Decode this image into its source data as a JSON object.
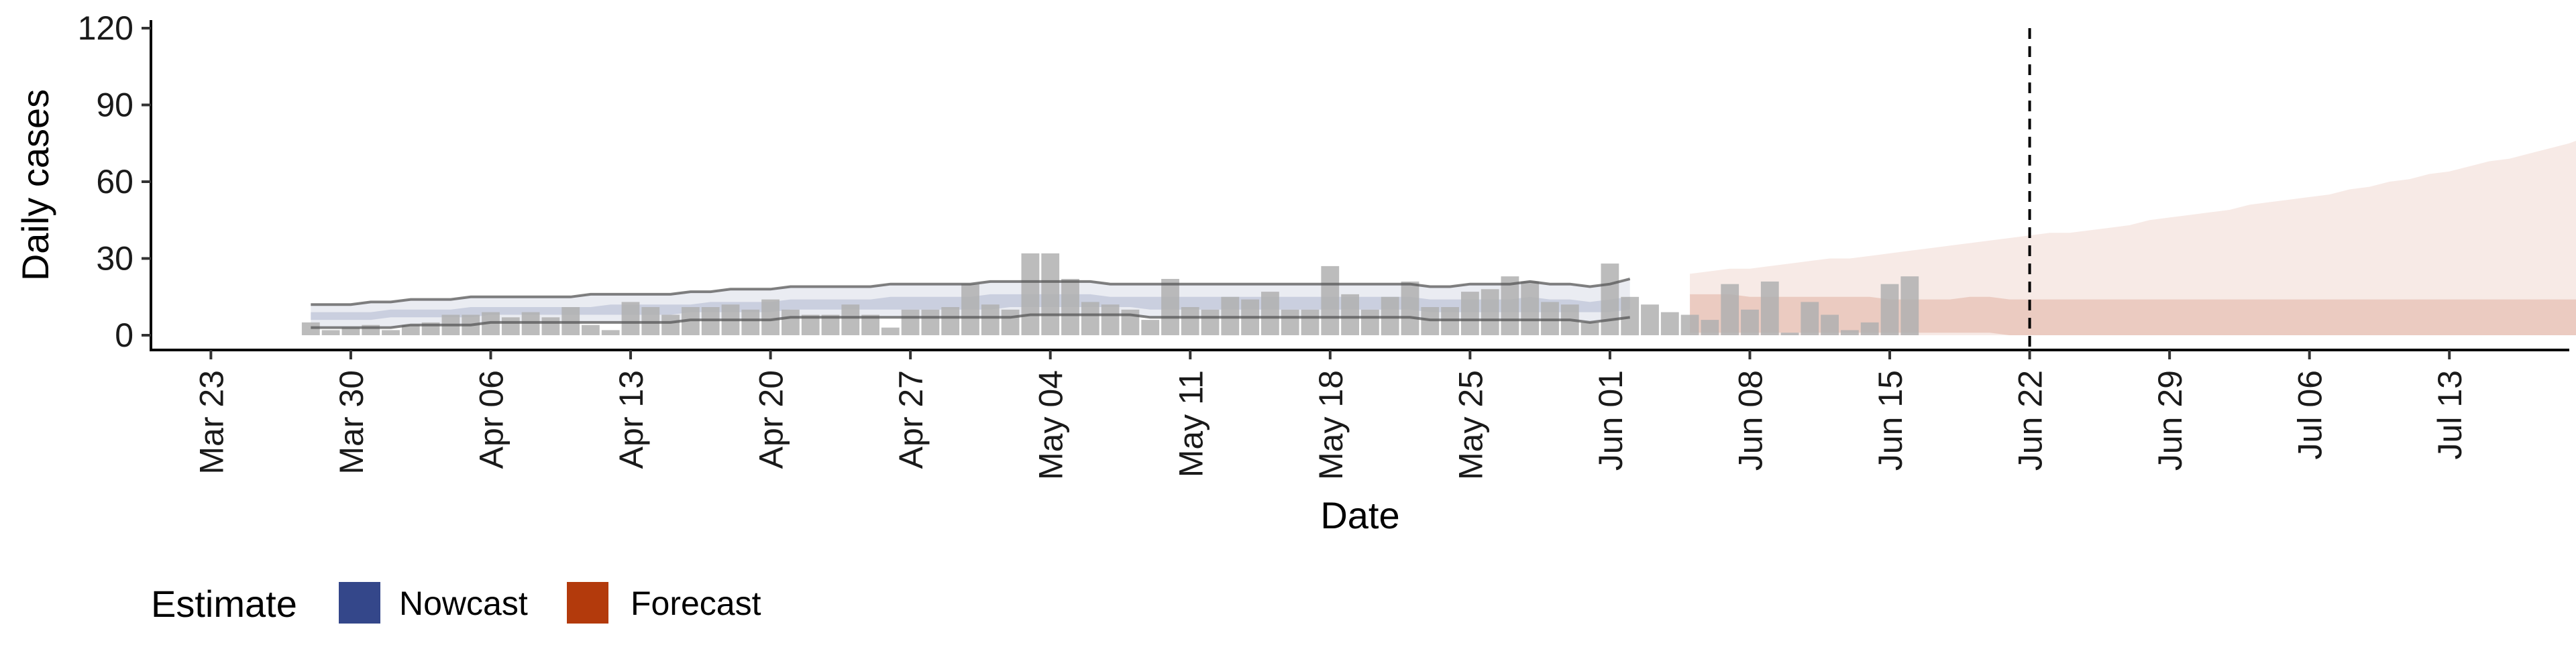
{
  "chart_data": {
    "type": "bar",
    "title": "",
    "xlabel": "Date",
    "ylabel": "Daily cases",
    "ylim": [
      0,
      120
    ],
    "y_ticks": [
      0,
      30,
      60,
      90,
      120
    ],
    "xlim": [
      "2020-03-20",
      "2020-07-19"
    ],
    "x_ticks": [
      {
        "date": "2020-03-23",
        "label": "Mar 23"
      },
      {
        "date": "2020-03-30",
        "label": "Mar 30"
      },
      {
        "date": "2020-04-06",
        "label": "Apr 06"
      },
      {
        "date": "2020-04-13",
        "label": "Apr 13"
      },
      {
        "date": "2020-04-20",
        "label": "Apr 20"
      },
      {
        "date": "2020-04-27",
        "label": "Apr 27"
      },
      {
        "date": "2020-05-04",
        "label": "May 04"
      },
      {
        "date": "2020-05-11",
        "label": "May 11"
      },
      {
        "date": "2020-05-18",
        "label": "May 18"
      },
      {
        "date": "2020-05-25",
        "label": "May 25"
      },
      {
        "date": "2020-06-01",
        "label": "Jun 01"
      },
      {
        "date": "2020-06-08",
        "label": "Jun 08"
      },
      {
        "date": "2020-06-15",
        "label": "Jun 15"
      },
      {
        "date": "2020-06-22",
        "label": "Jun 22"
      },
      {
        "date": "2020-06-29",
        "label": "Jun 29"
      },
      {
        "date": "2020-07-06",
        "label": "Jul 06"
      },
      {
        "date": "2020-07-13",
        "label": "Jul 13"
      }
    ],
    "vline_date": "2020-06-22",
    "bars": {
      "start_date": "2020-03-28",
      "values": [
        5,
        2,
        3,
        4,
        2,
        4,
        5,
        8,
        8,
        9,
        7,
        9,
        7,
        11,
        4,
        2,
        13,
        11,
        8,
        11,
        11,
        12,
        10,
        14,
        10,
        8,
        8,
        12,
        8,
        3,
        10,
        10,
        11,
        20,
        12,
        10,
        32,
        32,
        22,
        13,
        12,
        10,
        6,
        22,
        11,
        10,
        15,
        14,
        17,
        10,
        10,
        27,
        16,
        10,
        15,
        21,
        11,
        11,
        17,
        18,
        23,
        21,
        13,
        12,
        5,
        28,
        15,
        12,
        9,
        8,
        6,
        20,
        10,
        21,
        1,
        13,
        8,
        2,
        5,
        20,
        23
      ],
      "color": "#b0b0b0"
    },
    "series": [
      {
        "name": "Nowcast",
        "color": "#3c4e8c",
        "x_start": "2020-03-28",
        "outer_upper": [
          12,
          12,
          12,
          13,
          13,
          14,
          14,
          14,
          15,
          15,
          15,
          15,
          15,
          15,
          16,
          16,
          16,
          16,
          16,
          17,
          17,
          18,
          18,
          18,
          19,
          19,
          19,
          19,
          19,
          20,
          20,
          20,
          20,
          20,
          21,
          21,
          21,
          21,
          21,
          21,
          20,
          20,
          20,
          20,
          20,
          20,
          20,
          20,
          20,
          20,
          20,
          20,
          20,
          20,
          20,
          20,
          19,
          19,
          20,
          20,
          20,
          21,
          20,
          20,
          19,
          20,
          22
        ],
        "outer_lower": [
          3,
          3,
          3,
          3,
          3,
          4,
          4,
          4,
          4,
          5,
          5,
          5,
          5,
          5,
          5,
          5,
          5,
          5,
          5,
          6,
          6,
          6,
          6,
          6,
          7,
          7,
          7,
          7,
          7,
          7,
          7,
          7,
          7,
          7,
          7,
          7,
          8,
          8,
          8,
          8,
          8,
          8,
          7,
          7,
          7,
          7,
          7,
          7,
          7,
          7,
          7,
          7,
          7,
          7,
          7,
          7,
          6,
          6,
          6,
          6,
          6,
          6,
          6,
          6,
          5,
          6,
          7
        ],
        "inner_upper": [
          9,
          9,
          9,
          9,
          10,
          10,
          10,
          10,
          11,
          11,
          11,
          11,
          11,
          11,
          11,
          12,
          12,
          12,
          12,
          12,
          13,
          13,
          13,
          13,
          14,
          14,
          14,
          14,
          14,
          15,
          15,
          15,
          15,
          15,
          16,
          16,
          16,
          16,
          16,
          16,
          15,
          15,
          15,
          15,
          15,
          15,
          15,
          15,
          15,
          15,
          15,
          15,
          15,
          15,
          15,
          15,
          14,
          14,
          14,
          14,
          14,
          15,
          14,
          14,
          13,
          14,
          15
        ],
        "inner_lower": [
          6,
          6,
          6,
          6,
          7,
          7,
          7,
          7,
          7,
          8,
          8,
          8,
          8,
          8,
          8,
          8,
          8,
          8,
          8,
          9,
          9,
          9,
          9,
          9,
          10,
          10,
          10,
          10,
          10,
          10,
          10,
          10,
          10,
          10,
          10,
          11,
          11,
          11,
          11,
          11,
          11,
          11,
          10,
          10,
          10,
          10,
          10,
          10,
          10,
          10,
          10,
          10,
          10,
          10,
          10,
          10,
          9,
          9,
          9,
          9,
          9,
          9,
          9,
          9,
          9,
          9,
          10
        ]
      },
      {
        "name": "Forecast",
        "color": "#b5441b",
        "x_start": "2020-06-05",
        "outer_upper": [
          24,
          25,
          26,
          26,
          27,
          28,
          29,
          30,
          30,
          31,
          32,
          33,
          34,
          35,
          36,
          37,
          38,
          39,
          40,
          40,
          41,
          42,
          43,
          45,
          46,
          47,
          48,
          49,
          51,
          52,
          53,
          54,
          55,
          57,
          58,
          60,
          61,
          63,
          64,
          66,
          68,
          69,
          71,
          73,
          75,
          78,
          80,
          81,
          83,
          84,
          86,
          87,
          89,
          90,
          92,
          93,
          95,
          97,
          100,
          105,
          107,
          108,
          110,
          112,
          114,
          116,
          117
        ],
        "outer_lower": [
          0,
          0,
          0,
          0,
          0,
          0,
          0,
          0,
          0,
          0,
          0,
          0,
          0,
          0,
          0,
          0,
          0,
          0,
          0,
          0,
          0,
          0,
          0,
          0,
          0,
          0,
          0,
          0,
          0,
          0,
          0,
          0,
          0,
          0,
          0,
          0,
          0,
          0,
          0,
          0,
          0,
          0,
          0,
          0,
          0,
          0,
          0,
          0,
          0,
          0,
          0,
          0,
          0,
          0,
          0,
          0,
          0,
          0,
          0,
          0,
          0,
          0,
          0,
          0,
          0,
          0,
          0
        ],
        "inner_upper": [
          16,
          16,
          16,
          15,
          15,
          15,
          15,
          15,
          15,
          15,
          14,
          14,
          14,
          14,
          15,
          15,
          14,
          14,
          14,
          14,
          14,
          14,
          14,
          14,
          14,
          14,
          14,
          14,
          14,
          14,
          14,
          14,
          14,
          14,
          14,
          14,
          14,
          14,
          14,
          14,
          14,
          14,
          14,
          14,
          14,
          14,
          14,
          14,
          14,
          14,
          14,
          14,
          14,
          14,
          14,
          14,
          14,
          14,
          14,
          14,
          14,
          14,
          14,
          13,
          13,
          13,
          13
        ],
        "inner_lower": [
          1,
          1,
          1,
          1,
          1,
          1,
          1,
          1,
          1,
          1,
          1,
          1,
          1,
          1,
          1,
          1,
          0,
          0,
          0,
          0,
          0,
          0,
          0,
          0,
          0,
          0,
          0,
          0,
          0,
          0,
          0,
          0,
          0,
          0,
          0,
          0,
          0,
          0,
          0,
          0,
          0,
          0,
          0,
          0,
          0,
          0,
          0,
          0,
          0,
          0,
          0,
          0,
          0,
          0,
          0,
          0,
          0,
          0,
          0,
          0,
          0,
          0,
          0,
          0,
          0,
          0,
          0
        ]
      }
    ],
    "legend": {
      "title": "Estimate",
      "placement": "bottom-left",
      "items": [
        {
          "label": "Nowcast",
          "color": "#34478a"
        },
        {
          "label": "Forecast",
          "color": "#b33a0c"
        }
      ]
    }
  }
}
